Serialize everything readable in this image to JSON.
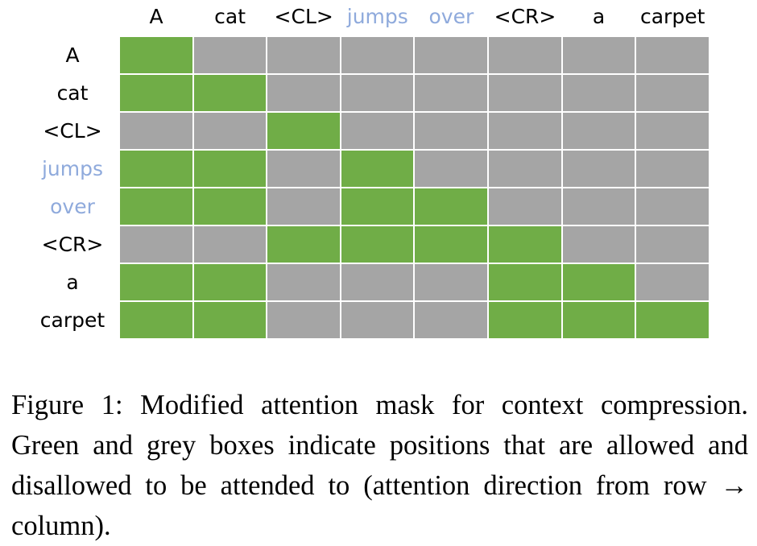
{
  "colors": {
    "allowed": "#70ad47",
    "disallowed": "#a5a5a5",
    "highlight_token": "#8faadc",
    "text": "#000000"
  },
  "tokens": [
    {
      "text": "A",
      "highlight": false
    },
    {
      "text": "cat",
      "highlight": false
    },
    {
      "text": "<CL>",
      "highlight": false
    },
    {
      "text": "jumps",
      "highlight": true
    },
    {
      "text": "over",
      "highlight": true
    },
    {
      "text": "<CR>",
      "highlight": false
    },
    {
      "text": "a",
      "highlight": false
    },
    {
      "text": "carpet",
      "highlight": false
    }
  ],
  "mask": [
    [
      1,
      0,
      0,
      0,
      0,
      0,
      0,
      0
    ],
    [
      1,
      1,
      0,
      0,
      0,
      0,
      0,
      0
    ],
    [
      0,
      0,
      1,
      0,
      0,
      0,
      0,
      0
    ],
    [
      1,
      1,
      0,
      1,
      0,
      0,
      0,
      0
    ],
    [
      1,
      1,
      0,
      1,
      1,
      0,
      0,
      0
    ],
    [
      0,
      0,
      1,
      1,
      1,
      1,
      0,
      0
    ],
    [
      1,
      1,
      0,
      0,
      0,
      1,
      1,
      0
    ],
    [
      1,
      1,
      0,
      0,
      0,
      1,
      1,
      1
    ]
  ],
  "caption": "Figure 1: Modified attention mask for context compression. Green and grey boxes indicate positions that are allowed and disallowed to be attended to (attention direction from row → column)."
}
